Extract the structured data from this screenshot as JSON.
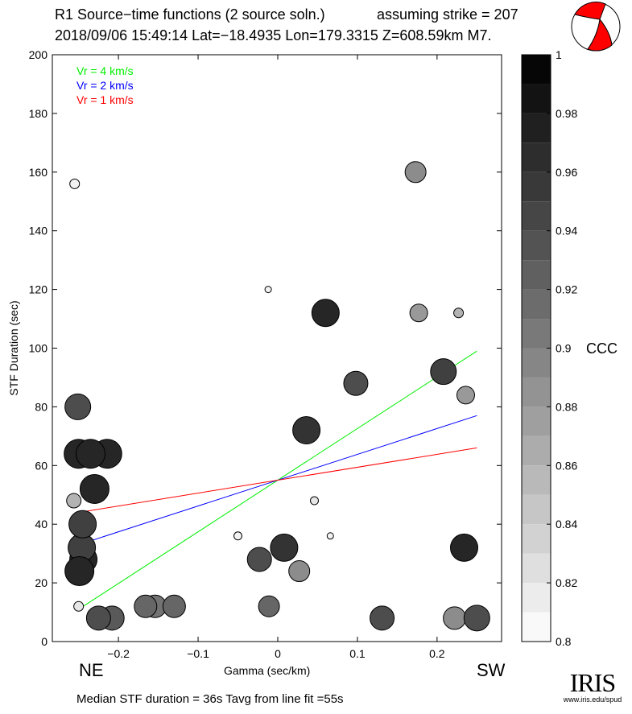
{
  "header": {
    "title": "R1 Source−time functions (2 source soln.)",
    "strike": "assuming strike = 207",
    "event": "2018/09/06 15:49:14  Lat=−18.4935 Lon=179.3315  Z=608.59km  M7."
  },
  "labels": {
    "ne": "NE",
    "sw": "SW",
    "summary": "Median STF duration = 36s    Tavg from line fit =55s",
    "colorbar": "CCC"
  },
  "logo": {
    "name": "IRIS",
    "url": "www.iris.edu/spud"
  },
  "colors": {
    "vr4": "#00ee00",
    "vr2": "#0000ff",
    "vr1": "#ff0000",
    "beachball": "#ff0000"
  },
  "chart_data": {
    "type": "scatter",
    "xlabel": "Gamma (sec/km)",
    "ylabel": "STF Duration (sec)",
    "xlim": [
      -0.283,
      0.281
    ],
    "ylim": [
      0,
      200
    ],
    "xticks": [
      -0.2,
      -0.1,
      0,
      0.1,
      0.2
    ],
    "xtick_labels": [
      "−0.2",
      "−0.1",
      "0",
      "0.1",
      "0.2"
    ],
    "yticks": [
      0,
      20,
      40,
      60,
      80,
      100,
      120,
      140,
      160,
      180,
      200
    ],
    "ytick_labels": [
      "0",
      "20",
      "40",
      "60",
      "80",
      "100",
      "120",
      "140",
      "160",
      "180",
      "200"
    ],
    "colorbar": {
      "label": "CCC",
      "range": [
        0.8,
        1.0
      ],
      "steps": 20,
      "ticks": [
        0.8,
        0.82,
        0.84,
        0.86,
        0.88,
        0.9,
        0.92,
        0.94,
        0.96,
        0.98,
        1
      ],
      "tick_labels": [
        "0.8",
        "0.82",
        "0.84",
        "0.86",
        "0.88",
        "0.9",
        "0.92",
        "0.94",
        "0.96",
        "0.98",
        "1"
      ]
    },
    "legend": {
      "placement": "top-left",
      "entries": [
        {
          "label": "Vr = 4 km/s",
          "color": "#00ee00"
        },
        {
          "label": "Vr = 2 km/s",
          "color": "#0000ff"
        },
        {
          "label": "Vr = 1 km/s",
          "color": "#ff0000"
        }
      ]
    },
    "lines": [
      {
        "name": "Vr = 4 km/s",
        "color": "#00ee00",
        "x": [
          -0.25,
          0.25
        ],
        "y": [
          11,
          99
        ]
      },
      {
        "name": "Vr = 2 km/s",
        "color": "#0000ff",
        "x": [
          -0.25,
          0.25
        ],
        "y": [
          33,
          77
        ]
      },
      {
        "name": "Vr = 1 km/s",
        "color": "#ff0000",
        "x": [
          -0.25,
          0.25
        ],
        "y": [
          44,
          66
        ]
      }
    ],
    "points": [
      {
        "x": -0.255,
        "y": 156,
        "ccc": 0.81,
        "size": 6
      },
      {
        "x": -0.251,
        "y": 80,
        "ccc": 0.94,
        "size": 16
      },
      {
        "x": -0.25,
        "y": 64,
        "ccc": 0.97,
        "size": 18
      },
      {
        "x": -0.214,
        "y": 64,
        "ccc": 0.97,
        "size": 18
      },
      {
        "x": -0.235,
        "y": 64,
        "ccc": 0.97,
        "size": 18
      },
      {
        "x": -0.23,
        "y": 52,
        "ccc": 0.97,
        "size": 18
      },
      {
        "x": -0.256,
        "y": 48,
        "ccc": 0.86,
        "size": 9
      },
      {
        "x": -0.244,
        "y": 28,
        "ccc": 0.97,
        "size": 17
      },
      {
        "x": -0.246,
        "y": 32,
        "ccc": 0.95,
        "size": 17
      },
      {
        "x": -0.245,
        "y": 40,
        "ccc": 0.95,
        "size": 17
      },
      {
        "x": -0.249,
        "y": 24,
        "ccc": 0.97,
        "size": 18
      },
      {
        "x": -0.25,
        "y": 12,
        "ccc": 0.82,
        "size": 6
      },
      {
        "x": -0.208,
        "y": 8,
        "ccc": 0.93,
        "size": 15
      },
      {
        "x": -0.225,
        "y": 8,
        "ccc": 0.94,
        "size": 15
      },
      {
        "x": -0.154,
        "y": 12,
        "ccc": 0.91,
        "size": 14
      },
      {
        "x": -0.166,
        "y": 12,
        "ccc": 0.92,
        "size": 14
      },
      {
        "x": -0.13,
        "y": 12,
        "ccc": 0.92,
        "size": 14
      },
      {
        "x": -0.05,
        "y": 36,
        "ccc": 0.81,
        "size": 5
      },
      {
        "x": -0.023,
        "y": 28,
        "ccc": 0.94,
        "size": 15
      },
      {
        "x": -0.011,
        "y": 12,
        "ccc": 0.92,
        "size": 13
      },
      {
        "x": -0.012,
        "y": 120,
        "ccc": 0.81,
        "size": 4
      },
      {
        "x": 0.008,
        "y": 32,
        "ccc": 0.96,
        "size": 17
      },
      {
        "x": 0.027,
        "y": 24,
        "ccc": 0.89,
        "size": 13
      },
      {
        "x": 0.036,
        "y": 72,
        "ccc": 0.96,
        "size": 17
      },
      {
        "x": 0.046,
        "y": 48,
        "ccc": 0.82,
        "size": 5
      },
      {
        "x": 0.06,
        "y": 112,
        "ccc": 0.97,
        "size": 17
      },
      {
        "x": 0.066,
        "y": 36,
        "ccc": 0.81,
        "size": 4
      },
      {
        "x": 0.098,
        "y": 88,
        "ccc": 0.94,
        "size": 15
      },
      {
        "x": 0.131,
        "y": 8,
        "ccc": 0.94,
        "size": 15
      },
      {
        "x": 0.173,
        "y": 160,
        "ccc": 0.89,
        "size": 13
      },
      {
        "x": 0.177,
        "y": 112,
        "ccc": 0.88,
        "size": 11
      },
      {
        "x": 0.208,
        "y": 92,
        "ccc": 0.95,
        "size": 16
      },
      {
        "x": 0.222,
        "y": 8,
        "ccc": 0.89,
        "size": 14
      },
      {
        "x": 0.227,
        "y": 112,
        "ccc": 0.86,
        "size": 6
      },
      {
        "x": 0.236,
        "y": 84,
        "ccc": 0.88,
        "size": 11
      },
      {
        "x": 0.234,
        "y": 32,
        "ccc": 0.97,
        "size": 17
      },
      {
        "x": 0.25,
        "y": 8,
        "ccc": 0.94,
        "size": 16
      }
    ]
  }
}
